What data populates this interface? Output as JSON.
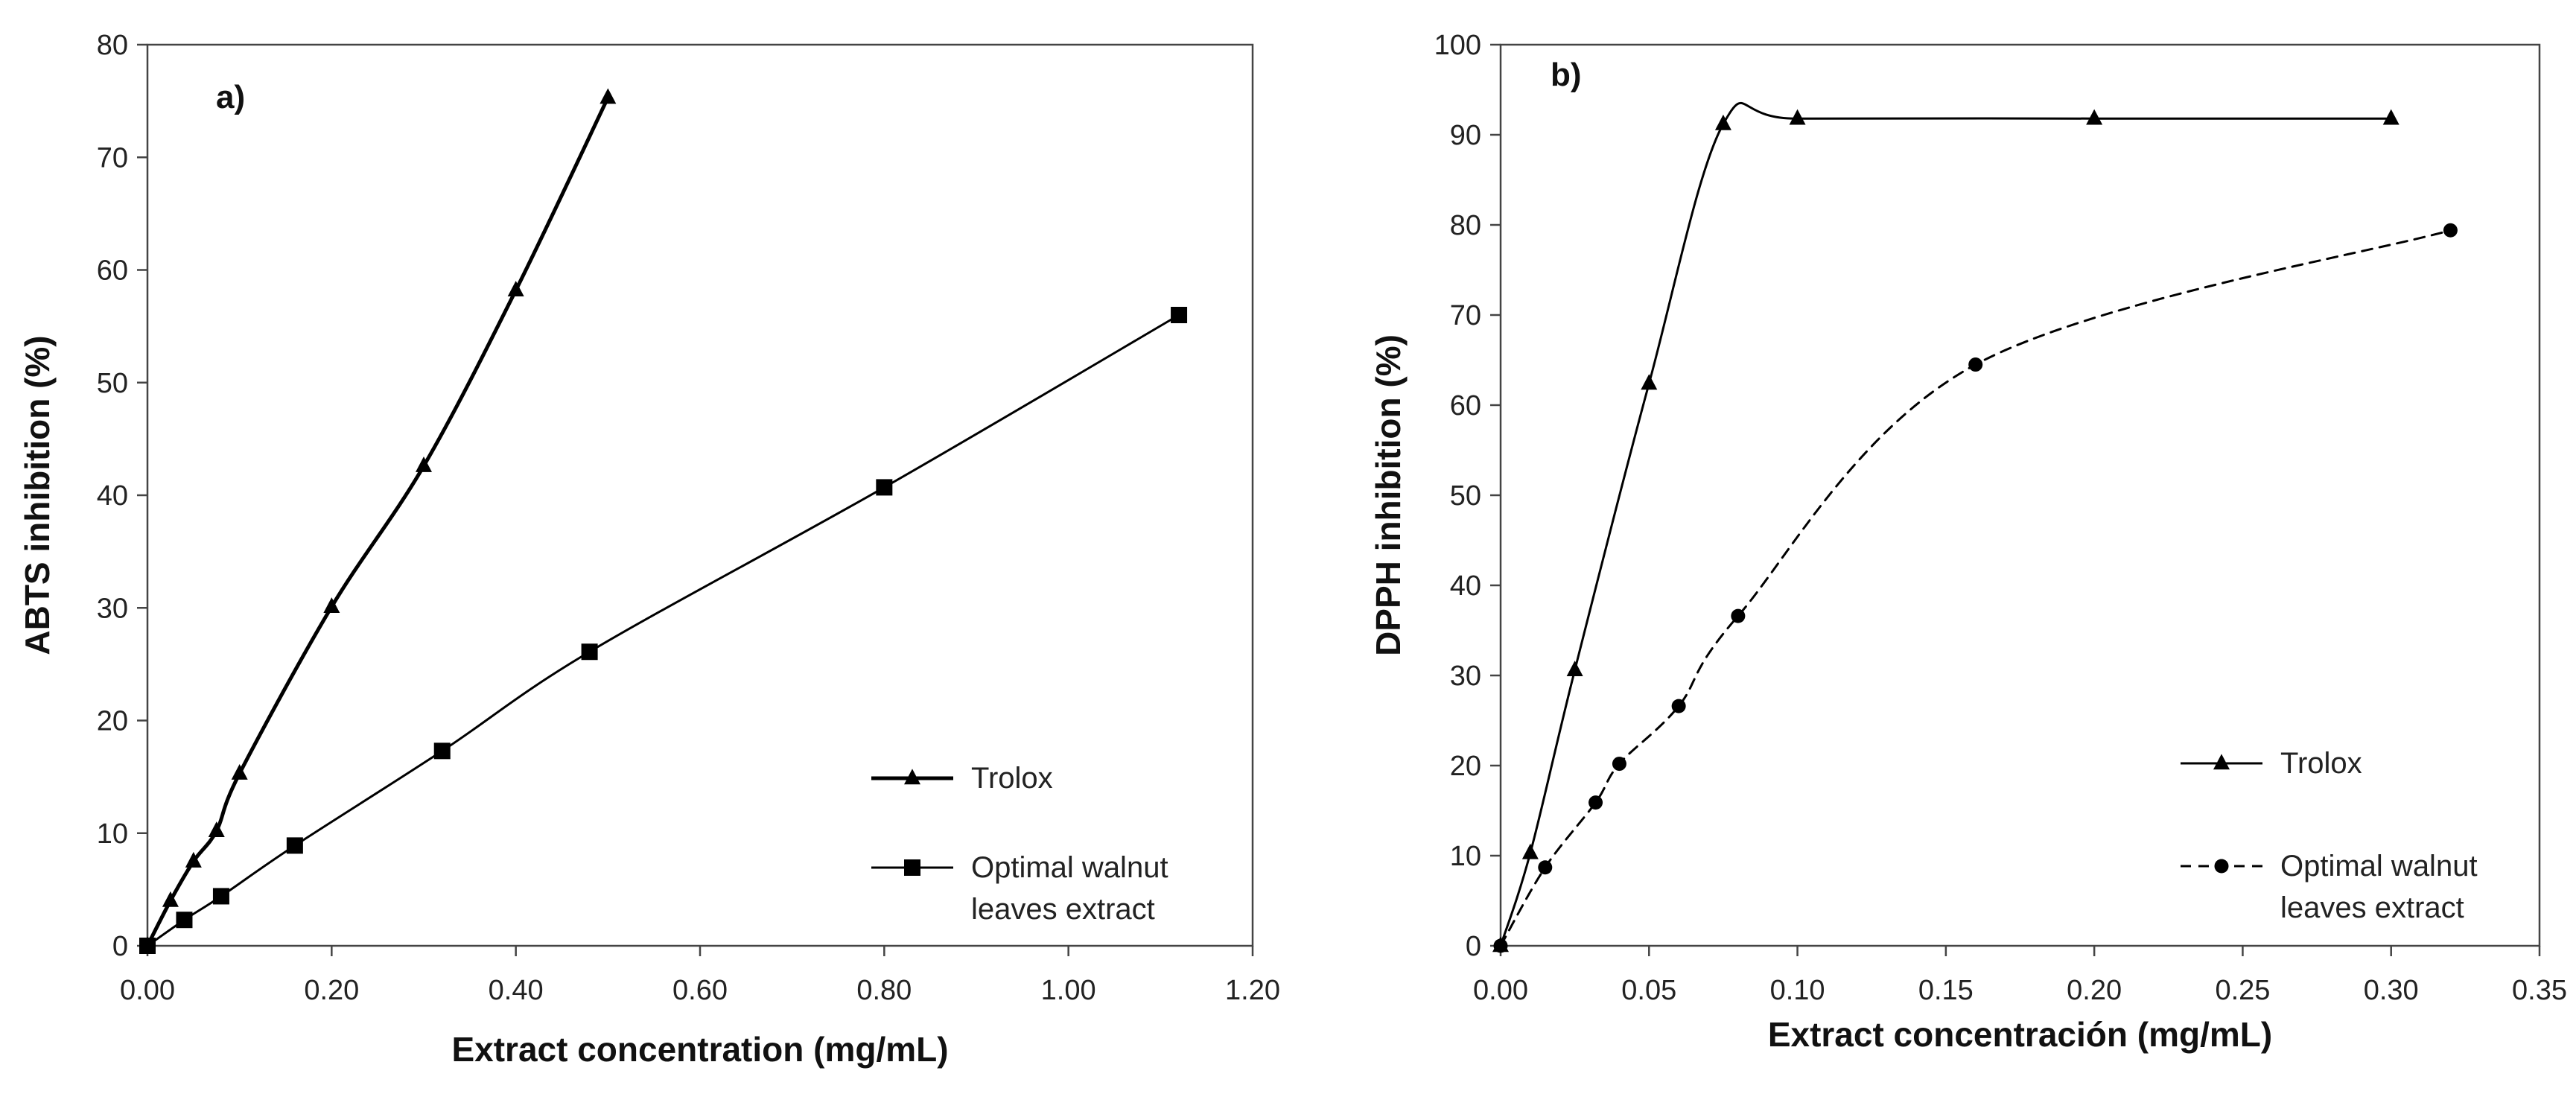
{
  "chart_data": [
    {
      "type": "line",
      "panel_label": "a)",
      "title": "",
      "xlabel": "Extract concentration (mg/mL)",
      "ylabel": "ABTS inhibition (%)",
      "xlim": [
        0,
        1.2
      ],
      "ylim": [
        0,
        80
      ],
      "xticks": [
        0,
        0.2,
        0.4,
        0.6,
        0.8,
        1.0,
        1.2
      ],
      "yticks": [
        0,
        10,
        20,
        30,
        40,
        50,
        60,
        70,
        80
      ],
      "xtick_labels": [
        "0.00",
        "0.20",
        "0.40",
        "0.60",
        "0.80",
        "1.00",
        "1.20"
      ],
      "ytick_labels": [
        "0",
        "10",
        "20",
        "30",
        "40",
        "50",
        "60",
        "70",
        "80"
      ],
      "grid": false,
      "legend_position": "bottom-right",
      "series": [
        {
          "name": "Trolox",
          "marker": "triangle",
          "line": "solid-bold",
          "x": [
            0,
            0.025,
            0.05,
            0.075,
            0.1,
            0.2,
            0.3,
            0.4,
            0.5
          ],
          "y": [
            0,
            4,
            7.5,
            10.2,
            15.3,
            30.1,
            42.6,
            58.2,
            75.3
          ]
        },
        {
          "name": "Optimal walnut leaves extract",
          "legend_lines": [
            "Optimal walnut",
            "leaves extract"
          ],
          "marker": "square",
          "line": "solid",
          "x": [
            0,
            0.04,
            0.08,
            0.16,
            0.32,
            0.48,
            0.8,
            1.12
          ],
          "y": [
            0,
            2.3,
            4.4,
            8.9,
            17.3,
            26.1,
            40.7,
            56
          ]
        }
      ]
    },
    {
      "type": "line",
      "panel_label": "b)",
      "title": "",
      "xlabel": "Extract concentración (mg/mL)",
      "ylabel": "DPPH inhibition (%)",
      "xlim": [
        0,
        0.35
      ],
      "ylim": [
        0,
        100
      ],
      "xticks": [
        0,
        0.05,
        0.1,
        0.15,
        0.2,
        0.25,
        0.3,
        0.35
      ],
      "yticks": [
        0,
        10,
        20,
        30,
        40,
        50,
        60,
        70,
        80,
        90,
        100
      ],
      "xtick_labels": [
        "0.00",
        "0.05",
        "0.10",
        "0.15",
        "0.20",
        "0.25",
        "0.30",
        "0.35"
      ],
      "ytick_labels": [
        "0",
        "10",
        "20",
        "30",
        "40",
        "50",
        "60",
        "70",
        "80",
        "90",
        "100"
      ],
      "grid": false,
      "legend_position": "bottom-right",
      "series": [
        {
          "name": "Trolox",
          "marker": "triangle",
          "line": "solid",
          "x": [
            0,
            0.01,
            0.025,
            0.05,
            0.075,
            0.1,
            0.2,
            0.3
          ],
          "y": [
            0,
            10.3,
            30.6,
            62.4,
            91.2,
            91.8,
            91.8,
            91.8
          ]
        },
        {
          "name": "Optimal walnut leaves extract",
          "legend_lines": [
            "Optimal walnut",
            "leaves extract"
          ],
          "marker": "circle",
          "line": "dashed",
          "x": [
            0,
            0.015,
            0.032,
            0.04,
            0.06,
            0.08,
            0.16,
            0.32
          ],
          "y": [
            0,
            8.7,
            15.9,
            20.2,
            26.6,
            36.6,
            64.5,
            79.4
          ]
        }
      ]
    }
  ]
}
